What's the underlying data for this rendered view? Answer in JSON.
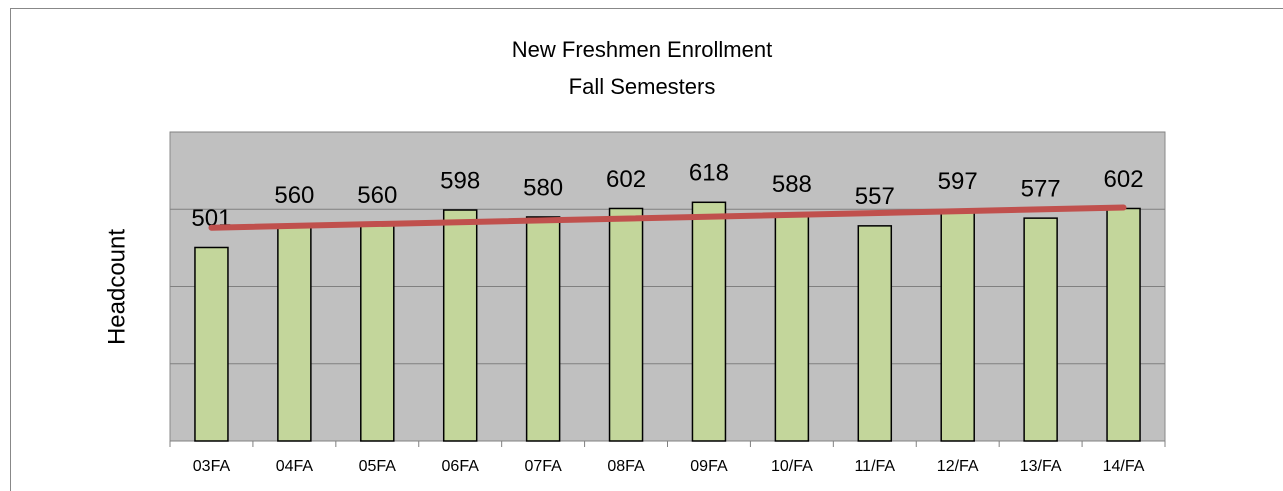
{
  "chart_data": {
    "type": "bar",
    "title": "New Freshmen Enrollment",
    "subtitle": "Fall Semesters",
    "y_label": "Headcount",
    "categories": [
      "03FA",
      "04FA",
      "05FA",
      "06FA",
      "07FA",
      "08FA",
      "09FA",
      "10/FA",
      "11/FA",
      "12/FA",
      "13/FA",
      "14/FA"
    ],
    "values": [
      501,
      560,
      560,
      598,
      580,
      602,
      618,
      588,
      557,
      597,
      577,
      602
    ],
    "color": "#c3d69b",
    "ylim": [
      0,
      800
    ],
    "yticks": [
      0,
      200,
      400,
      600,
      800
    ],
    "grid": true,
    "trendline": "linear",
    "trendline_color": "#c0504d"
  }
}
